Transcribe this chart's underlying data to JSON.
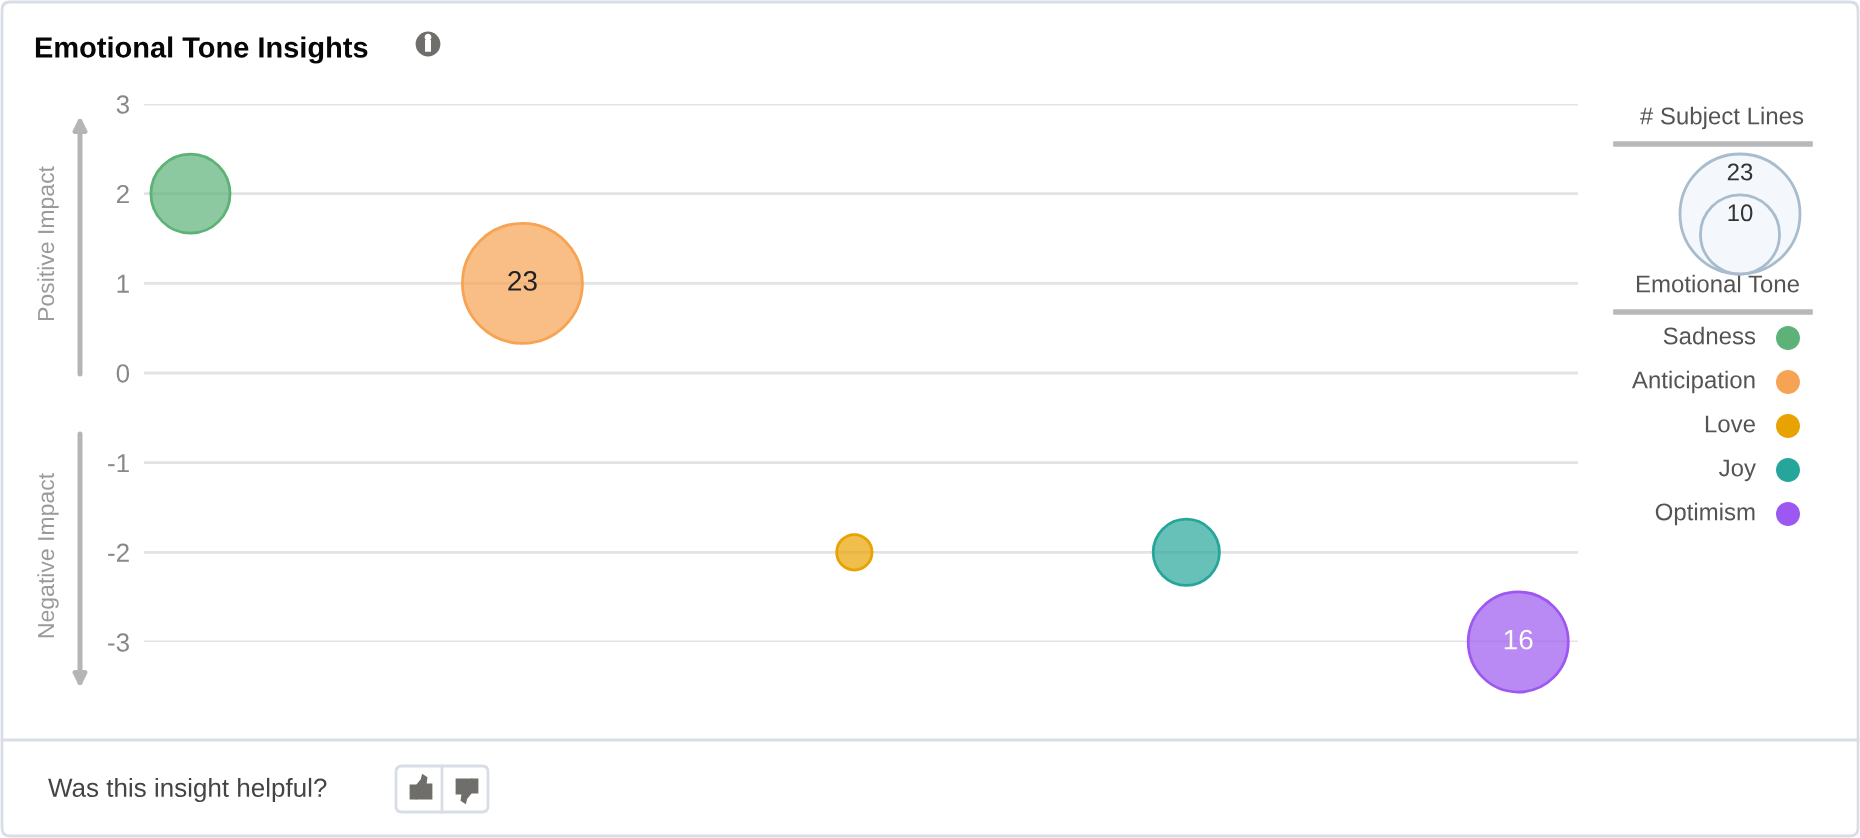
{
  "chart_data": {
    "type": "bubble",
    "title": "Emotional Tone Insights",
    "legend_title": "Emotional Tone",
    "categories": [
      null,
      null,
      null,
      null,
      null
    ],
    "series": [
      {
        "name": "Sadness",
        "color": "#5db278",
        "values": [
          2,
          null,
          null,
          null,
          null
        ],
        "sizes": [
          10,
          null,
          null,
          null,
          null
        ]
      },
      {
        "name": "Anticipation",
        "color": "#f6a353",
        "values": [
          null,
          1,
          null,
          null,
          null
        ],
        "sizes": [
          null,
          23,
          null,
          null,
          null
        ],
        "value_labels": [
          null,
          "23",
          null,
          null,
          null
        ]
      },
      {
        "name": "Love",
        "color": "#e8a202",
        "values": [
          null,
          null,
          -2,
          null,
          null
        ],
        "sizes": [
          null,
          null,
          2,
          null,
          null
        ]
      },
      {
        "name": "Joy",
        "color": "#26a69a",
        "values": [
          null,
          null,
          null,
          -2,
          null
        ],
        "sizes": [
          null,
          null,
          null,
          7,
          null
        ]
      },
      {
        "name": "Optimism",
        "color": "#9c58f0",
        "values": [
          null,
          null,
          null,
          null,
          -3
        ],
        "sizes": [
          null,
          null,
          null,
          null,
          16
        ],
        "value_labels": [
          null,
          null,
          null,
          null,
          "16"
        ]
      }
    ],
    "size_legend": [
      10,
      23
    ],
    "ylim": [
      -3,
      3
    ],
    "yticks": [
      -3,
      -2,
      -1,
      0,
      1,
      2,
      3
    ],
    "grid": "y",
    "tick_labels": "y",
    "legend": "right",
    "marker": "circle",
    "annotations": [
      "# Subject Lines",
      "Positive Impact",
      "Negative Impact",
      "Was this insight helpful?"
    ]
  }
}
